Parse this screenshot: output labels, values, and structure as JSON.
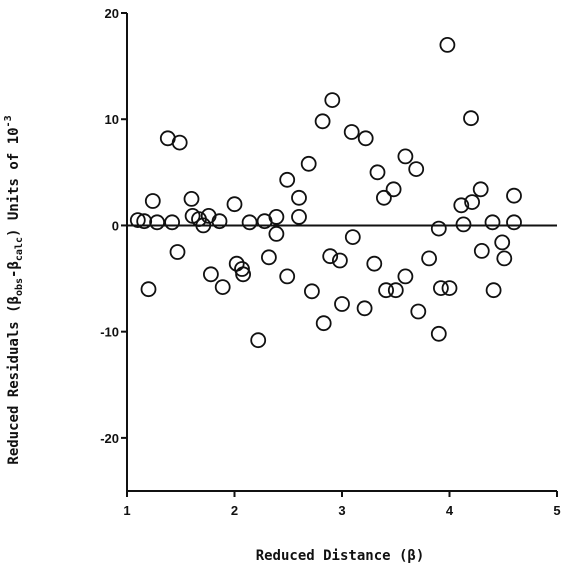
{
  "chart_data": {
    "type": "scatter",
    "title": "",
    "xlabel": "Reduced Distance (β)",
    "ylabel_parts": {
      "prefix": "Reduced Residuals (β",
      "obs_sub": "obs",
      "mid": "-β",
      "calc_sub": "calc",
      "suffix": ") Units of 10",
      "exp_sup": "-3"
    },
    "xlim": [
      1,
      5
    ],
    "ylim": [
      -25,
      20
    ],
    "x_ticks": [
      "1",
      "2",
      "3",
      "4",
      "5"
    ],
    "x_tick_values": [
      1,
      2,
      3,
      4,
      5
    ],
    "y_ticks": [
      "20",
      "10",
      "0",
      "-10",
      "-20"
    ],
    "y_tick_values": [
      20,
      10,
      0,
      -10,
      -20
    ],
    "zero_line": true,
    "grid": false,
    "marker": "open-circle",
    "color": "#111111",
    "series": [
      {
        "points": [
          [
            1.1,
            0.5
          ],
          [
            1.16,
            0.4
          ],
          [
            1.2,
            -6.0
          ],
          [
            1.24,
            2.3
          ],
          [
            1.28,
            0.3
          ],
          [
            1.38,
            8.2
          ],
          [
            1.42,
            0.3
          ],
          [
            1.47,
            -2.5
          ],
          [
            1.49,
            7.8
          ],
          [
            1.6,
            2.5
          ],
          [
            1.61,
            0.9
          ],
          [
            1.67,
            0.6
          ],
          [
            1.71,
            0.0
          ],
          [
            1.76,
            0.9
          ],
          [
            1.78,
            -4.6
          ],
          [
            1.86,
            0.4
          ],
          [
            1.89,
            -5.8
          ],
          [
            2.0,
            2.0
          ],
          [
            2.02,
            -3.6
          ],
          [
            2.07,
            -4.1
          ],
          [
            2.08,
            -4.6
          ],
          [
            2.14,
            0.3
          ],
          [
            2.22,
            -10.8
          ],
          [
            2.28,
            0.4
          ],
          [
            2.32,
            -3.0
          ],
          [
            2.39,
            -0.8
          ],
          [
            2.39,
            0.8
          ],
          [
            2.49,
            -4.8
          ],
          [
            2.49,
            4.3
          ],
          [
            2.6,
            2.6
          ],
          [
            2.6,
            0.8
          ],
          [
            2.69,
            5.8
          ],
          [
            2.72,
            -6.2
          ],
          [
            2.82,
            9.8
          ],
          [
            2.83,
            -9.2
          ],
          [
            2.89,
            -2.9
          ],
          [
            2.91,
            11.8
          ],
          [
            2.98,
            -3.3
          ],
          [
            3.0,
            -7.4
          ],
          [
            3.09,
            8.8
          ],
          [
            3.1,
            -1.1
          ],
          [
            3.21,
            -7.8
          ],
          [
            3.22,
            8.2
          ],
          [
            3.3,
            -3.6
          ],
          [
            3.33,
            5.0
          ],
          [
            3.39,
            2.6
          ],
          [
            3.41,
            -6.1
          ],
          [
            3.48,
            3.4
          ],
          [
            3.5,
            -6.1
          ],
          [
            3.59,
            6.5
          ],
          [
            3.59,
            -4.8
          ],
          [
            3.69,
            5.3
          ],
          [
            3.71,
            -8.1
          ],
          [
            3.81,
            -3.1
          ],
          [
            3.9,
            -0.3
          ],
          [
            3.9,
            -10.2
          ],
          [
            3.92,
            -5.9
          ],
          [
            3.98,
            17.0
          ],
          [
            4.0,
            -5.9
          ],
          [
            4.11,
            1.9
          ],
          [
            4.13,
            0.1
          ],
          [
            4.2,
            10.1
          ],
          [
            4.21,
            2.2
          ],
          [
            4.29,
            3.4
          ],
          [
            4.3,
            -2.4
          ],
          [
            4.4,
            0.3
          ],
          [
            4.41,
            -6.1
          ],
          [
            4.49,
            -1.6
          ],
          [
            4.51,
            -3.1
          ],
          [
            4.6,
            2.8
          ],
          [
            4.6,
            0.3
          ]
        ]
      }
    ]
  }
}
